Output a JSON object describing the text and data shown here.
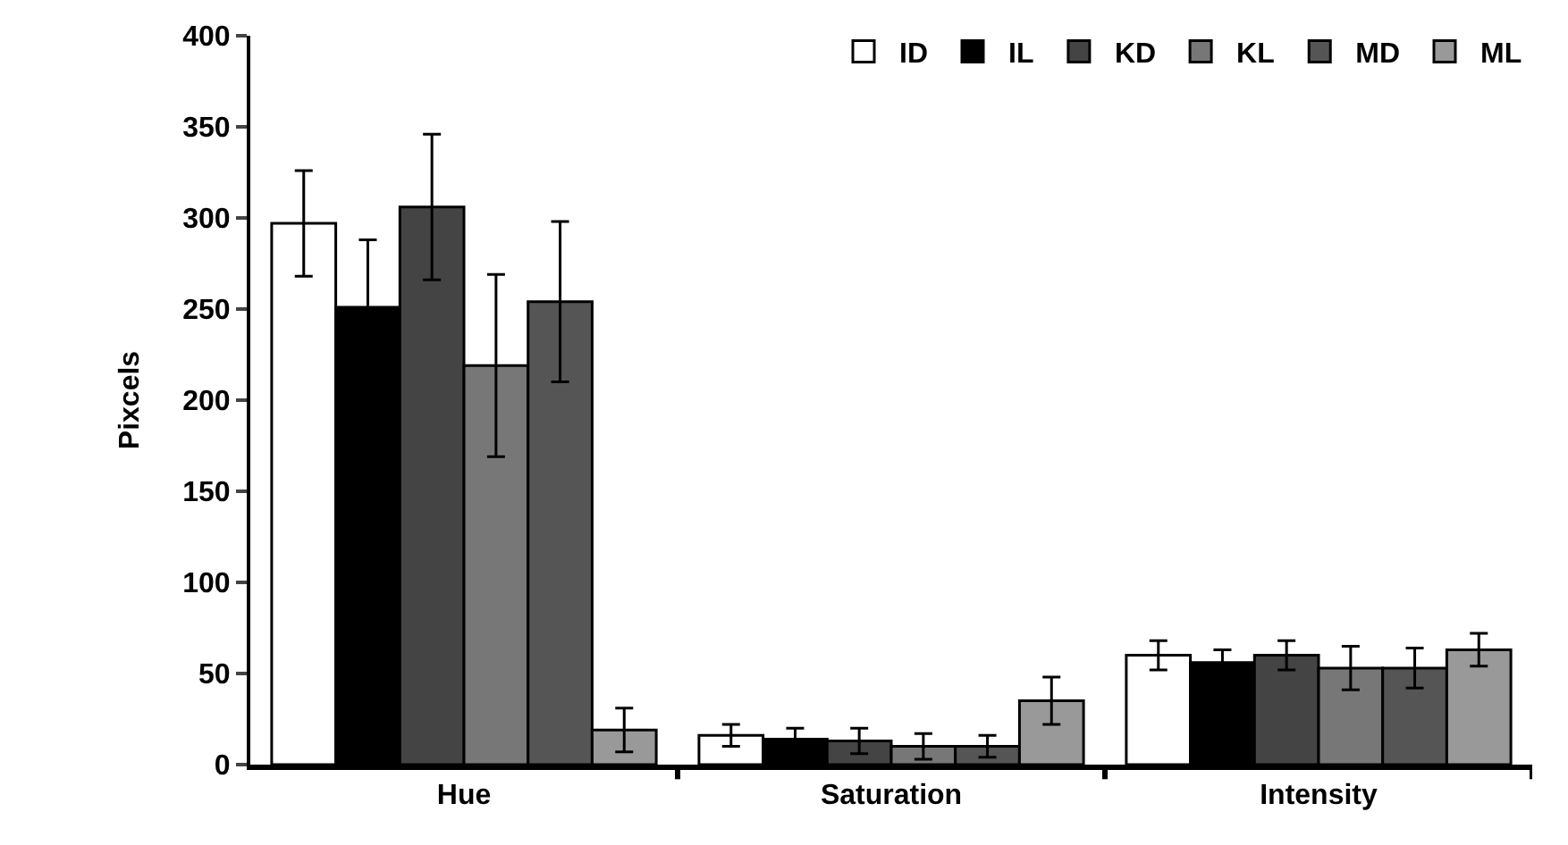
{
  "chart_data": {
    "type": "bar",
    "ylabel": "Pixcels",
    "categories": [
      "Hue",
      "Saturation",
      "Intensity"
    ],
    "series": [
      {
        "name": "ID",
        "color": "#ffffff",
        "values": [
          297,
          16,
          60
        ],
        "errors": [
          29,
          6,
          8
        ]
      },
      {
        "name": "IL",
        "color": "#000000",
        "values": [
          251,
          14,
          56
        ],
        "errors": [
          37,
          6,
          7
        ]
      },
      {
        "name": "KD",
        "color": "#444444",
        "values": [
          306,
          13,
          60
        ],
        "errors": [
          40,
          7,
          8
        ]
      },
      {
        "name": "KL",
        "color": "#777777",
        "values": [
          219,
          10,
          53
        ],
        "errors": [
          50,
          7,
          12
        ]
      },
      {
        "name": "MD",
        "color": "#555555",
        "values": [
          254,
          10,
          53
        ],
        "errors": [
          44,
          6,
          11
        ]
      },
      {
        "name": "ML",
        "color": "#999999",
        "values": [
          19,
          35,
          63
        ],
        "errors": [
          12,
          13,
          9
        ]
      }
    ],
    "ylim": [
      0,
      400
    ],
    "yticks": [
      0,
      50,
      100,
      150,
      200,
      250,
      300,
      350,
      400
    ],
    "grid": false,
    "legend": "top right"
  }
}
